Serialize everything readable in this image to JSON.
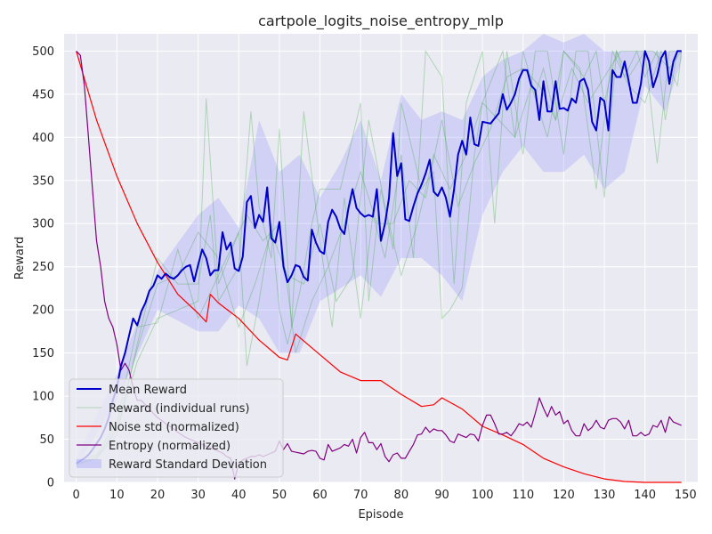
{
  "chart_data": {
    "type": "line",
    "title": "cartpole_logits_noise_entropy_mlp",
    "xlabel": "Episode",
    "ylabel": "Reward",
    "xlim": [
      -3,
      153
    ],
    "ylim": [
      0,
      520
    ],
    "grid": true,
    "legend_position": "lower-left",
    "x_ticks": [
      0,
      10,
      20,
      30,
      40,
      50,
      60,
      70,
      80,
      90,
      100,
      110,
      120,
      130,
      140,
      150
    ],
    "y_ticks": [
      0,
      50,
      100,
      150,
      200,
      250,
      300,
      350,
      400,
      450,
      500
    ],
    "colors": {
      "background": "#eaeaf2",
      "grid": "#ffffff",
      "mean": "#0000cc",
      "runs": "#2ca02c",
      "noise": "#ff0000",
      "entropy": "#800080",
      "band": "#8888ff"
    },
    "legend": [
      {
        "label": "Mean Reward",
        "style": "mean"
      },
      {
        "label": "Reward (individual runs)",
        "style": "runs"
      },
      {
        "label": "Noise std (normalized)",
        "style": "noise"
      },
      {
        "label": "Entropy (normalized)",
        "style": "entropy"
      },
      {
        "label": "Reward Standard Deviation",
        "style": "band"
      }
    ],
    "series": [
      {
        "name": "Mean Reward",
        "x": [
          0,
          1,
          2,
          3,
          4,
          5,
          6,
          7,
          8,
          9,
          10,
          11,
          12,
          13,
          14,
          15,
          16,
          17,
          18,
          19,
          20,
          21,
          22,
          23,
          24,
          25,
          26,
          27,
          28,
          29,
          30,
          31,
          32,
          33,
          34,
          35,
          36,
          37,
          38,
          39,
          40,
          41,
          42,
          43,
          44,
          45,
          46,
          47,
          48,
          49,
          50,
          51,
          52,
          53,
          54,
          55,
          56,
          57,
          58,
          59,
          60,
          61,
          62,
          63,
          64,
          65,
          66,
          67,
          68,
          69,
          70,
          71,
          72,
          73,
          74,
          75,
          76,
          77,
          78,
          79,
          80,
          81,
          82,
          83,
          84,
          85,
          86,
          87,
          88,
          89,
          90,
          91,
          92,
          93,
          94,
          95,
          96,
          97,
          98,
          99,
          100,
          101,
          102,
          103,
          104,
          105,
          106,
          107,
          108,
          109,
          110,
          111,
          112,
          113,
          114,
          115,
          116,
          117,
          118,
          119,
          120,
          121,
          122,
          123,
          124,
          125,
          126,
          127,
          128,
          129,
          130,
          131,
          132,
          133,
          134,
          135,
          136,
          137,
          138,
          139,
          140,
          141,
          142,
          143,
          144,
          145,
          146,
          147,
          148,
          149
        ],
        "values": [
          22,
          25,
          28,
          32,
          38,
          45,
          52,
          62,
          75,
          95,
          110,
          135,
          150,
          170,
          190,
          182,
          198,
          208,
          222,
          228,
          240,
          236,
          242,
          238,
          236,
          240,
          246,
          250,
          252,
          233,
          252,
          270,
          260,
          240,
          246,
          246,
          290,
          270,
          278,
          248,
          245,
          262,
          325,
          332,
          295,
          310,
          302,
          342,
          283,
          278,
          302,
          250,
          232,
          240,
          252,
          250,
          238,
          234,
          293,
          278,
          268,
          265,
          302,
          316,
          308,
          294,
          288,
          318,
          340,
          318,
          312,
          308,
          310,
          308,
          340,
          280,
          300,
          330,
          405,
          355,
          370,
          305,
          303,
          320,
          335,
          345,
          358,
          374,
          337,
          332,
          342,
          330,
          308,
          340,
          380,
          396,
          380,
          423,
          392,
          390,
          418,
          417,
          416,
          422,
          428,
          450,
          432,
          440,
          450,
          468,
          478,
          478,
          460,
          455,
          420,
          465,
          430,
          430,
          465,
          433,
          434,
          431,
          445,
          440,
          465,
          468,
          455,
          418,
          408,
          446,
          442,
          408,
          478,
          470,
          470,
          488,
          465,
          440,
          440,
          462,
          500,
          488,
          458,
          472,
          492,
          500,
          462,
          488,
          500,
          500
        ]
      },
      {
        "name": "Noise std (normalized)",
        "x": [
          0,
          5,
          10,
          15,
          20,
          25,
          30,
          32,
          33,
          35,
          40,
          45,
          50,
          52,
          54,
          55,
          60,
          65,
          70,
          75,
          80,
          85,
          88,
          90,
          95,
          100,
          105,
          110,
          115,
          120,
          125,
          130,
          135,
          140,
          149
        ],
        "values": [
          500,
          420,
          355,
          300,
          255,
          218,
          196,
          186,
          218,
          208,
          190,
          165,
          145,
          142,
          172,
          168,
          148,
          128,
          118,
          118,
          102,
          88,
          90,
          98,
          85,
          65,
          55,
          44,
          28,
          18,
          10,
          4,
          1,
          0,
          0
        ]
      },
      {
        "name": "Entropy (normalized)",
        "x": [
          0,
          1,
          2,
          3,
          4,
          5,
          6,
          7,
          8,
          9,
          10,
          11,
          12,
          13,
          14,
          15,
          16,
          17,
          18,
          19,
          20,
          21,
          22,
          23,
          24,
          25,
          26,
          27,
          28,
          29,
          30,
          31,
          32,
          33,
          34,
          35,
          36,
          37,
          38,
          39,
          40,
          41,
          42,
          43,
          44,
          45,
          46,
          47,
          48,
          49,
          50,
          51,
          52,
          53,
          54,
          55,
          56,
          57,
          58,
          59,
          60,
          61,
          62,
          63,
          64,
          65,
          66,
          67,
          68,
          69,
          70,
          71,
          72,
          73,
          74,
          75,
          76,
          77,
          78,
          79,
          80,
          81,
          82,
          83,
          84,
          85,
          86,
          87,
          88,
          89,
          90,
          91,
          92,
          93,
          94,
          95,
          96,
          97,
          98,
          99,
          100,
          101,
          102,
          103,
          104,
          105,
          106,
          107,
          108,
          109,
          110,
          111,
          112,
          113,
          114,
          115,
          116,
          117,
          118,
          119,
          120,
          121,
          122,
          123,
          124,
          125,
          126,
          127,
          128,
          129,
          130,
          131,
          132,
          133,
          134,
          135,
          136,
          137,
          138,
          139,
          140,
          141,
          142,
          143,
          144,
          145,
          146,
          147,
          148,
          149
        ],
        "values": [
          500,
          495,
          460,
          400,
          340,
          280,
          250,
          210,
          190,
          180,
          160,
          130,
          138,
          130,
          110,
          95,
          95,
          90,
          85,
          80,
          75,
          72,
          68,
          65,
          62,
          58,
          55,
          52,
          50,
          48,
          46,
          44,
          42,
          40,
          38,
          36,
          34,
          30,
          28,
          4,
          22,
          26,
          28,
          30,
          30,
          32,
          30,
          32,
          34,
          36,
          48,
          38,
          45,
          36,
          35,
          34,
          33,
          36,
          37,
          36,
          28,
          26,
          44,
          36,
          38,
          40,
          44,
          42,
          50,
          34,
          52,
          58,
          46,
          46,
          38,
          45,
          30,
          24,
          32,
          34,
          28,
          28,
          36,
          44,
          55,
          56,
          64,
          58,
          62,
          60,
          60,
          55,
          48,
          46,
          56,
          54,
          52,
          56,
          55,
          48,
          66,
          78,
          78,
          68,
          56,
          56,
          58,
          54,
          60,
          68,
          66,
          70,
          64,
          80,
          98,
          86,
          76,
          88,
          78,
          82,
          68,
          72,
          60,
          54,
          54,
          68,
          60,
          64,
          72,
          64,
          62,
          72,
          74,
          74,
          70,
          62,
          72,
          54,
          54,
          58,
          54,
          56,
          66,
          64,
          72,
          58,
          76,
          70,
          68,
          66
        ]
      }
    ],
    "individual_runs": [
      {
        "x": [
          0,
          5,
          10,
          15,
          20,
          25,
          30,
          32,
          35,
          40,
          42,
          45,
          48,
          50,
          52,
          55,
          58,
          60,
          65,
          70,
          72,
          75,
          78,
          80,
          85,
          88,
          90,
          92,
          95,
          98,
          100,
          105,
          108,
          110,
          113,
          115,
          118,
          120,
          125,
          128,
          130,
          133,
          135,
          138,
          140,
          143,
          145,
          148,
          149
        ],
        "values": [
          20,
          30,
          60,
          140,
          190,
          200,
          210,
          445,
          230,
          290,
          135,
          210,
          300,
          200,
          160,
          220,
          300,
          340,
          340,
          440,
          210,
          340,
          270,
          440,
          340,
          360,
          190,
          200,
          225,
          380,
          440,
          500,
          400,
          500,
          450,
          480,
          420,
          500,
          470,
          500,
          440,
          500,
          470,
          500,
          470,
          500,
          420,
          500,
          500
        ]
      },
      {
        "x": [
          0,
          5,
          10,
          15,
          20,
          25,
          30,
          33,
          35,
          40,
          43,
          45,
          48,
          50,
          53,
          56,
          60,
          63,
          66,
          70,
          73,
          76,
          80,
          83,
          86,
          90,
          93,
          96,
          100,
          103,
          106,
          110,
          113,
          116,
          120,
          123,
          126,
          130,
          133,
          136,
          140,
          143,
          146,
          149
        ],
        "values": [
          22,
          28,
          55,
          160,
          260,
          230,
          230,
          310,
          210,
          250,
          430,
          320,
          260,
          410,
          180,
          430,
          280,
          180,
          330,
          190,
          310,
          260,
          380,
          260,
          500,
          470,
          230,
          440,
          500,
          300,
          500,
          380,
          500,
          500,
          380,
          500,
          500,
          330,
          500,
          470,
          500,
          370,
          500,
          500
        ]
      },
      {
        "x": [
          0,
          5,
          10,
          15,
          20,
          25,
          30,
          34,
          38,
          42,
          46,
          50,
          54,
          58,
          62,
          66,
          70,
          74,
          78,
          82,
          86,
          90,
          94,
          98,
          102,
          106,
          110,
          114,
          118,
          122,
          126,
          130,
          134,
          138,
          142,
          146,
          149
        ],
        "values": [
          24,
          32,
          70,
          180,
          185,
          270,
          190,
          230,
          270,
          310,
          280,
          300,
          150,
          210,
          250,
          300,
          360,
          300,
          300,
          350,
          330,
          420,
          320,
          370,
          410,
          470,
          480,
          460,
          420,
          480,
          440,
          470,
          500,
          500,
          500,
          480,
          500
        ]
      },
      {
        "x": [
          0,
          5,
          10,
          15,
          20,
          25,
          30,
          35,
          40,
          44,
          48,
          52,
          56,
          60,
          64,
          68,
          72,
          76,
          80,
          84,
          88,
          92,
          96,
          100,
          104,
          108,
          112,
          116,
          120,
          124,
          128,
          132,
          136,
          140,
          144,
          148,
          149
        ],
        "values": [
          21,
          27,
          65,
          155,
          230,
          240,
          290,
          260,
          180,
          230,
          290,
          240,
          230,
          300,
          210,
          240,
          420,
          320,
          240,
          300,
          380,
          340,
          380,
          440,
          420,
          400,
          460,
          400,
          500,
          480,
          340,
          500,
          460,
          440,
          500,
          460,
          500
        ]
      }
    ],
    "std_band": {
      "x": [
        0,
        10,
        20,
        30,
        35,
        40,
        45,
        50,
        55,
        60,
        65,
        70,
        75,
        80,
        85,
        90,
        95,
        100,
        105,
        110,
        115,
        120,
        125,
        130,
        135,
        140,
        145,
        149
      ],
      "upper": [
        28,
        125,
        245,
        310,
        330,
        295,
        420,
        360,
        380,
        330,
        370,
        420,
        350,
        450,
        420,
        430,
        420,
        470,
        490,
        500,
        520,
        510,
        520,
        500,
        500,
        500,
        500,
        500
      ],
      "lower": [
        18,
        95,
        200,
        175,
        175,
        205,
        190,
        150,
        150,
        210,
        225,
        240,
        215,
        260,
        260,
        240,
        210,
        310,
        360,
        390,
        360,
        360,
        380,
        340,
        360,
        460,
        430,
        490
      ]
    }
  }
}
